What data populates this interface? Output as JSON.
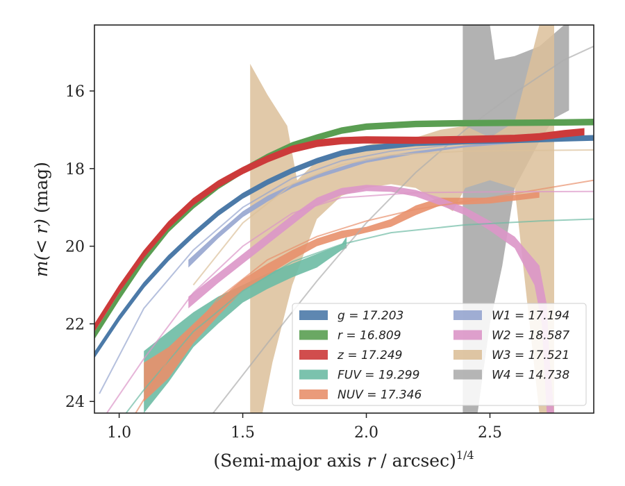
{
  "chart_data": {
    "type": "line",
    "xlabel": "(Semi-major axis r / arcsec)1/4",
    "ylabel": "m(< r) (mag)",
    "xlim": [
      0.9,
      2.92
    ],
    "ylim": [
      24.3,
      14.3
    ],
    "y_inverted": true,
    "x_ticks": [
      1.0,
      1.5,
      2.0,
      2.5
    ],
    "x_tick_labels": [
      "1.0",
      "1.5",
      "2.0",
      "2.5"
    ],
    "y_ticks": [
      16,
      18,
      20,
      22,
      24
    ],
    "y_tick_labels": [
      "16",
      "18",
      "20",
      "22",
      "24"
    ],
    "grid": false,
    "legend": {
      "placement": "lower-right",
      "columns": 2,
      "entries": [
        {
          "text": "g = 17.203",
          "color": "#4c7aa8"
        },
        {
          "text": "r = 16.809",
          "color": "#5a9e52"
        },
        {
          "text": "z = 17.249",
          "color": "#cc3a3a"
        },
        {
          "text": "FUV = 19.299",
          "color": "#6dbba4"
        },
        {
          "text": "NUV = 17.346",
          "color": "#e8906c"
        },
        {
          "text": "W1 = 17.194",
          "color": "#96a5cf"
        },
        {
          "text": "W2 = 18.587",
          "color": "#dc96c8"
        },
        {
          "text": "W3 = 17.521",
          "color": "#dcc09a"
        },
        {
          "text": "W4 = 14.738",
          "color": "#aeaeae"
        }
      ]
    },
    "series": [
      {
        "name": "g = 17.203",
        "color": "#4c7aa8",
        "data": [
          [
            0.9,
            22.8
          ],
          [
            1.0,
            21.85
          ],
          [
            1.1,
            21.0
          ],
          [
            1.2,
            20.3
          ],
          [
            1.3,
            19.7
          ],
          [
            1.4,
            19.15
          ],
          [
            1.5,
            18.7
          ],
          [
            1.6,
            18.35
          ],
          [
            1.7,
            18.05
          ],
          [
            1.8,
            17.8
          ],
          [
            1.9,
            17.6
          ],
          [
            2.0,
            17.48
          ],
          [
            2.2,
            17.35
          ],
          [
            2.4,
            17.3
          ],
          [
            2.6,
            17.27
          ],
          [
            2.8,
            17.23
          ],
          [
            2.92,
            17.21
          ]
        ],
        "half_width": 0.06
      },
      {
        "name": "r = 16.809",
        "color": "#5a9e52",
        "data": [
          [
            0.9,
            22.3
          ],
          [
            1.0,
            21.3
          ],
          [
            1.1,
            20.35
          ],
          [
            1.2,
            19.55
          ],
          [
            1.3,
            18.95
          ],
          [
            1.4,
            18.45
          ],
          [
            1.5,
            18.05
          ],
          [
            1.6,
            17.7
          ],
          [
            1.7,
            17.4
          ],
          [
            1.8,
            17.2
          ],
          [
            1.9,
            17.02
          ],
          [
            2.0,
            16.92
          ],
          [
            2.2,
            16.85
          ],
          [
            2.4,
            16.83
          ],
          [
            2.6,
            16.82
          ],
          [
            2.8,
            16.81
          ],
          [
            2.92,
            16.8
          ]
        ],
        "half_width": 0.07
      },
      {
        "name": "z = 17.249",
        "color": "#cc3a3a",
        "data": [
          [
            0.9,
            22.1
          ],
          [
            1.0,
            21.1
          ],
          [
            1.1,
            20.2
          ],
          [
            1.2,
            19.45
          ],
          [
            1.3,
            18.85
          ],
          [
            1.4,
            18.4
          ],
          [
            1.5,
            18.05
          ],
          [
            1.6,
            17.75
          ],
          [
            1.7,
            17.5
          ],
          [
            1.8,
            17.35
          ],
          [
            1.9,
            17.28
          ],
          [
            2.0,
            17.26
          ],
          [
            2.2,
            17.27
          ],
          [
            2.4,
            17.25
          ],
          [
            2.6,
            17.22
          ],
          [
            2.7,
            17.18
          ],
          [
            2.8,
            17.1
          ],
          [
            2.88,
            17.05
          ]
        ],
        "half_width": 0.08
      },
      {
        "name": "FUV = 19.299",
        "color": "#6dbba4",
        "data_upper": [
          [
            1.1,
            22.7
          ],
          [
            1.2,
            22.2
          ],
          [
            1.3,
            21.7
          ],
          [
            1.4,
            21.3
          ],
          [
            1.5,
            21.0
          ],
          [
            1.6,
            20.7
          ],
          [
            1.7,
            20.45
          ],
          [
            1.8,
            20.2
          ],
          [
            1.9,
            19.95
          ],
          [
            1.92,
            19.75
          ]
        ],
        "data_lower": [
          [
            1.1,
            24.3
          ],
          [
            1.2,
            23.5
          ],
          [
            1.3,
            22.6
          ],
          [
            1.4,
            22.0
          ],
          [
            1.5,
            21.45
          ],
          [
            1.6,
            21.1
          ],
          [
            1.7,
            20.8
          ],
          [
            1.8,
            20.55
          ],
          [
            1.9,
            20.1
          ],
          [
            1.92,
            20.05
          ]
        ],
        "model": [
          [
            0.92,
            25.2
          ],
          [
            1.1,
            23.7
          ],
          [
            1.3,
            22.2
          ],
          [
            1.5,
            21.15
          ],
          [
            1.7,
            20.4
          ],
          [
            1.9,
            19.95
          ],
          [
            2.1,
            19.65
          ],
          [
            2.4,
            19.45
          ],
          [
            2.7,
            19.35
          ],
          [
            2.92,
            19.3
          ]
        ]
      },
      {
        "name": "NUV = 17.346",
        "color": "#e8906c",
        "data_upper": [
          [
            1.1,
            23.0
          ],
          [
            1.2,
            22.6
          ],
          [
            1.3,
            22.0
          ],
          [
            1.4,
            21.4
          ],
          [
            1.5,
            20.85
          ],
          [
            1.6,
            20.45
          ],
          [
            1.7,
            20.1
          ],
          [
            1.8,
            19.8
          ],
          [
            1.9,
            19.6
          ],
          [
            2.0,
            19.5
          ],
          [
            2.1,
            19.3
          ],
          [
            2.2,
            18.95
          ],
          [
            2.3,
            18.75
          ],
          [
            2.5,
            18.75
          ],
          [
            2.7,
            18.6
          ]
        ],
        "data_lower": [
          [
            1.1,
            24.0
          ],
          [
            1.2,
            23.4
          ],
          [
            1.3,
            22.5
          ],
          [
            1.4,
            21.8
          ],
          [
            1.5,
            21.15
          ],
          [
            1.6,
            20.75
          ],
          [
            1.7,
            20.35
          ],
          [
            1.8,
            20.0
          ],
          [
            1.9,
            19.8
          ],
          [
            2.0,
            19.65
          ],
          [
            2.1,
            19.5
          ],
          [
            2.2,
            19.2
          ],
          [
            2.3,
            18.95
          ],
          [
            2.5,
            18.9
          ],
          [
            2.7,
            18.75
          ]
        ],
        "model": [
          [
            1.0,
            25.0
          ],
          [
            1.2,
            22.9
          ],
          [
            1.4,
            21.35
          ],
          [
            1.6,
            20.35
          ],
          [
            1.8,
            19.75
          ],
          [
            2.0,
            19.35
          ],
          [
            2.2,
            19.05
          ],
          [
            2.5,
            18.75
          ],
          [
            2.92,
            18.3
          ]
        ]
      },
      {
        "name": "W1 = 17.194",
        "color": "#96a5cf",
        "data_upper": [
          [
            1.28,
            20.35
          ],
          [
            1.4,
            19.65
          ],
          [
            1.5,
            19.1
          ],
          [
            1.6,
            18.7
          ],
          [
            1.7,
            18.4
          ],
          [
            1.8,
            18.15
          ],
          [
            1.9,
            17.95
          ],
          [
            2.0,
            17.75
          ],
          [
            2.2,
            17.55
          ],
          [
            2.4,
            17.4
          ],
          [
            2.6,
            17.3
          ],
          [
            2.8,
            17.22
          ],
          [
            2.92,
            17.2
          ]
        ],
        "data_lower": [
          [
            1.28,
            20.55
          ],
          [
            1.4,
            19.8
          ],
          [
            1.5,
            19.25
          ],
          [
            1.6,
            18.85
          ],
          [
            1.7,
            18.5
          ],
          [
            1.8,
            18.25
          ],
          [
            1.9,
            18.05
          ],
          [
            2.0,
            17.85
          ],
          [
            2.2,
            17.62
          ],
          [
            2.4,
            17.45
          ],
          [
            2.6,
            17.35
          ],
          [
            2.8,
            17.26
          ],
          [
            2.92,
            17.24
          ]
        ],
        "model": [
          [
            0.92,
            23.8
          ],
          [
            1.1,
            21.6
          ],
          [
            1.3,
            20.1
          ],
          [
            1.5,
            19.0
          ],
          [
            1.7,
            18.25
          ],
          [
            1.9,
            17.8
          ],
          [
            2.1,
            17.55
          ],
          [
            2.4,
            17.35
          ],
          [
            2.7,
            17.25
          ],
          [
            2.92,
            17.22
          ]
        ]
      },
      {
        "name": "W2 = 18.587",
        "color": "#dc96c8",
        "data_upper": [
          [
            1.28,
            21.3
          ],
          [
            1.4,
            20.7
          ],
          [
            1.5,
            20.2
          ],
          [
            1.6,
            19.7
          ],
          [
            1.7,
            19.2
          ],
          [
            1.8,
            18.75
          ],
          [
            1.9,
            18.5
          ],
          [
            2.0,
            18.42
          ],
          [
            2.1,
            18.45
          ],
          [
            2.2,
            18.55
          ],
          [
            2.3,
            18.75
          ],
          [
            2.4,
            19.0
          ],
          [
            2.5,
            19.35
          ],
          [
            2.6,
            19.75
          ],
          [
            2.7,
            20.5
          ],
          [
            2.73,
            21.5
          ],
          [
            2.74,
            22.8
          ],
          [
            2.76,
            24.3
          ]
        ],
        "data_lower": [
          [
            1.28,
            21.6
          ],
          [
            1.4,
            20.95
          ],
          [
            1.5,
            20.45
          ],
          [
            1.6,
            19.95
          ],
          [
            1.7,
            19.45
          ],
          [
            1.8,
            18.95
          ],
          [
            1.9,
            18.68
          ],
          [
            2.0,
            18.58
          ],
          [
            2.1,
            18.6
          ],
          [
            2.2,
            18.72
          ],
          [
            2.3,
            18.95
          ],
          [
            2.4,
            19.2
          ],
          [
            2.5,
            19.6
          ],
          [
            2.6,
            20.05
          ],
          [
            2.68,
            21.0
          ],
          [
            2.71,
            22.0
          ],
          [
            2.72,
            23.2
          ],
          [
            2.73,
            24.3
          ]
        ],
        "model": [
          [
            0.95,
            24.3
          ],
          [
            1.1,
            22.9
          ],
          [
            1.3,
            21.2
          ],
          [
            1.5,
            20.0
          ],
          [
            1.7,
            19.15
          ],
          [
            1.9,
            18.75
          ],
          [
            2.2,
            18.62
          ],
          [
            2.5,
            18.6
          ],
          [
            2.92,
            18.59
          ]
        ]
      },
      {
        "name": "W3 = 17.521",
        "color": "#dcc09a",
        "data_upper": [
          [
            1.53,
            15.3
          ],
          [
            1.6,
            16.1
          ],
          [
            1.68,
            16.9
          ],
          [
            1.72,
            18.3
          ],
          [
            1.8,
            17.8
          ],
          [
            1.9,
            17.65
          ],
          [
            2.0,
            17.4
          ],
          [
            2.1,
            17.25
          ],
          [
            2.2,
            17.2
          ],
          [
            2.3,
            17.0
          ],
          [
            2.4,
            16.9
          ],
          [
            2.5,
            17.2
          ],
          [
            2.6,
            16.8
          ],
          [
            2.7,
            14.3
          ],
          [
            2.76,
            14.3
          ]
        ],
        "data_lower": [
          [
            1.53,
            24.3
          ],
          [
            1.58,
            24.3
          ],
          [
            1.62,
            23.0
          ],
          [
            1.7,
            21.0
          ],
          [
            1.8,
            19.3
          ],
          [
            1.9,
            18.7
          ],
          [
            2.0,
            18.5
          ],
          [
            2.1,
            18.4
          ],
          [
            2.2,
            18.5
          ],
          [
            2.3,
            18.9
          ],
          [
            2.35,
            19.1
          ],
          [
            2.4,
            18.5
          ],
          [
            2.5,
            18.3
          ],
          [
            2.6,
            18.5
          ],
          [
            2.7,
            24.3
          ],
          [
            2.76,
            24.3
          ]
        ],
        "model": [
          [
            1.3,
            21.0
          ],
          [
            1.5,
            19.4
          ],
          [
            1.7,
            18.4
          ],
          [
            1.9,
            17.9
          ],
          [
            2.1,
            17.65
          ],
          [
            2.4,
            17.55
          ],
          [
            2.7,
            17.53
          ],
          [
            2.92,
            17.52
          ]
        ]
      },
      {
        "name": "W4 = 14.738",
        "color": "#aeaeae",
        "data_upper": [
          [
            2.39,
            14.3
          ],
          [
            2.5,
            14.3
          ],
          [
            2.52,
            15.2
          ],
          [
            2.6,
            15.1
          ],
          [
            2.7,
            14.85
          ],
          [
            2.8,
            14.3
          ],
          [
            2.82,
            14.3
          ]
        ],
        "data_lower": [
          [
            2.39,
            24.3
          ],
          [
            2.45,
            24.3
          ],
          [
            2.5,
            22.0
          ],
          [
            2.55,
            20.5
          ],
          [
            2.6,
            18.5
          ],
          [
            2.65,
            17.9
          ],
          [
            2.7,
            17.3
          ],
          [
            2.76,
            16.7
          ],
          [
            2.82,
            16.5
          ]
        ],
        "model": [
          [
            1.38,
            24.3
          ],
          [
            1.6,
            22.5
          ],
          [
            1.8,
            20.9
          ],
          [
            2.0,
            19.4
          ],
          [
            2.2,
            18.1
          ],
          [
            2.4,
            17.0
          ],
          [
            2.6,
            16.05
          ],
          [
            2.8,
            15.2
          ],
          [
            2.92,
            14.85
          ]
        ]
      }
    ]
  }
}
